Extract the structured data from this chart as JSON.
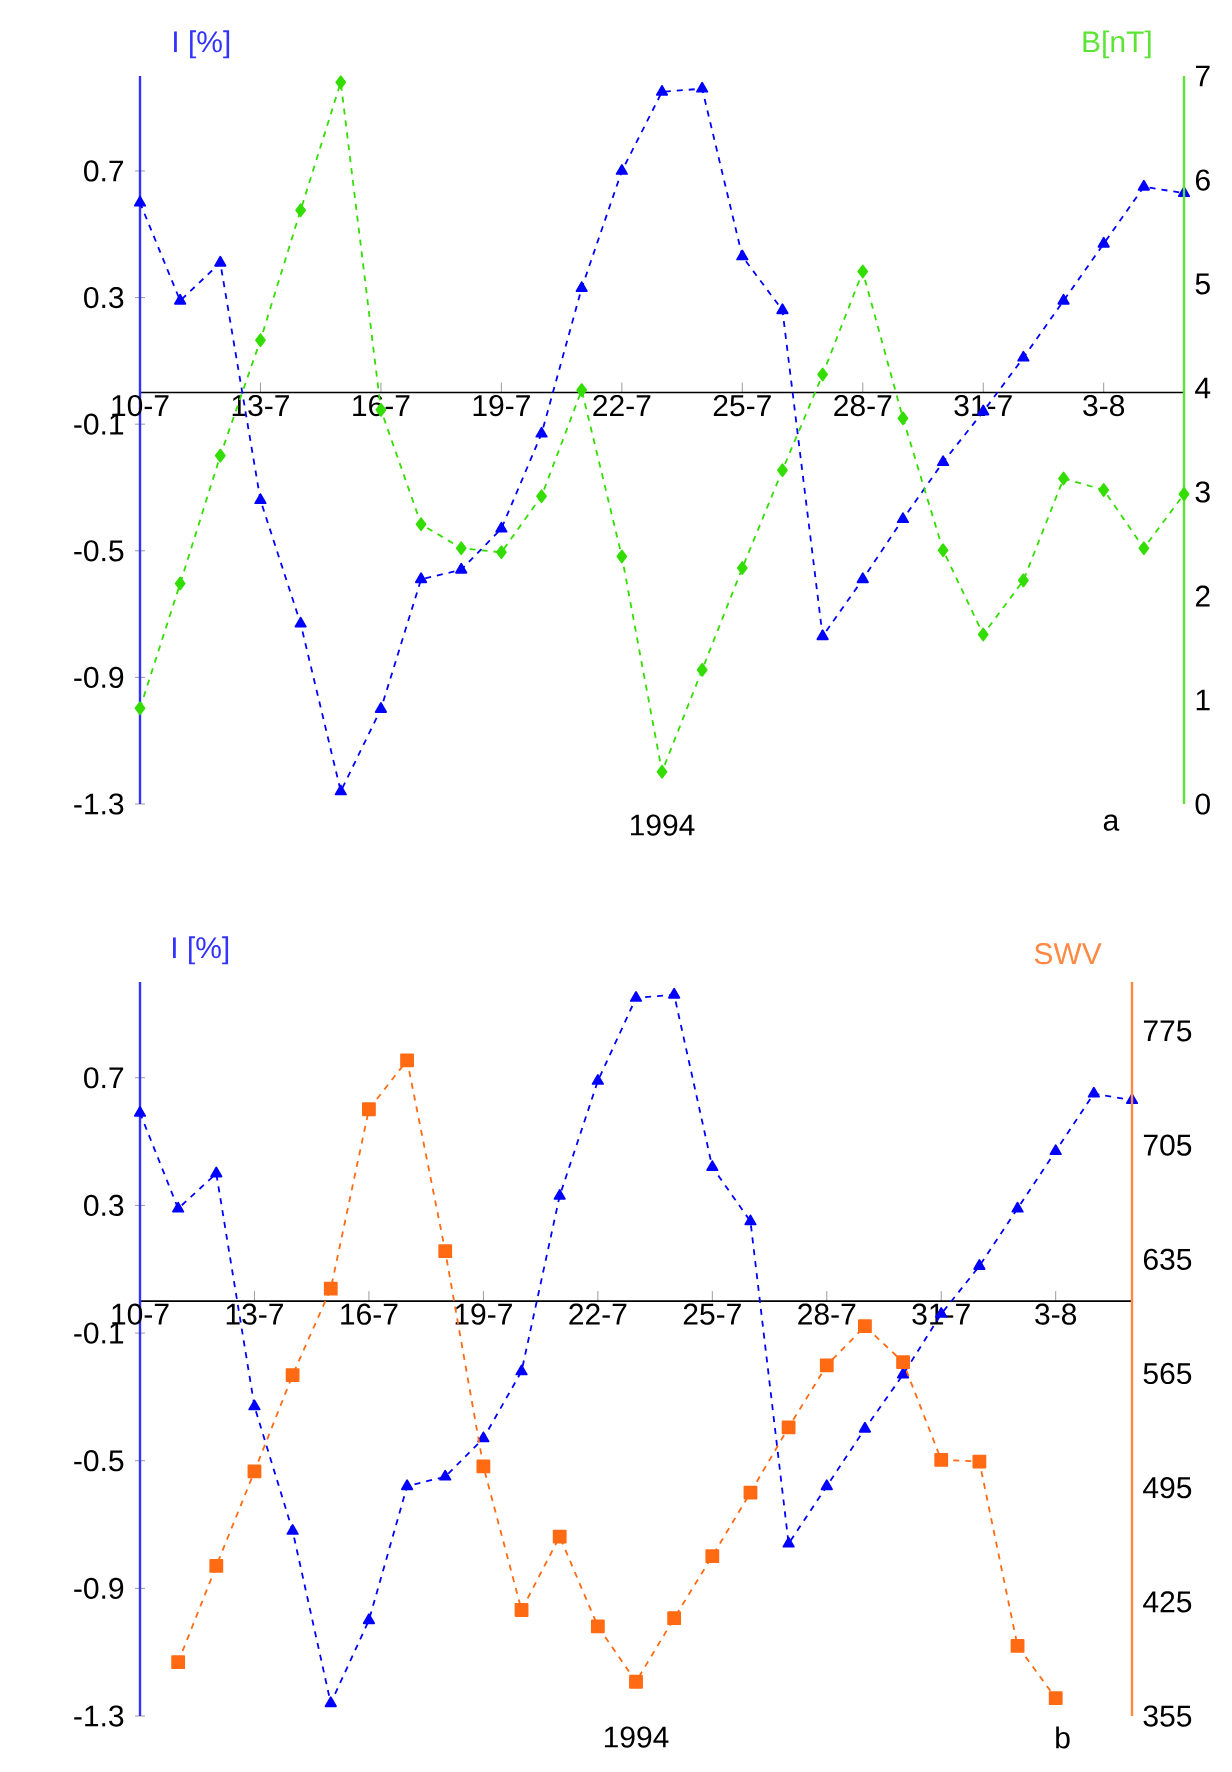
{
  "chart_data": [
    {
      "type": "line",
      "xlabel": "1994",
      "ylabel": "I [%]",
      "y2label": "B[nT]",
      "annotations": [
        "a"
      ],
      "categories": [
        "10-7",
        null,
        null,
        "13-7",
        null,
        null,
        "16-7",
        null,
        null,
        "19-7",
        null,
        null,
        "22-7",
        null,
        null,
        "25-7",
        null,
        null,
        "28-7",
        null,
        null,
        "31-7",
        null,
        null,
        "3-8",
        null,
        null
      ],
      "ylim": [
        -1.3,
        1.0
      ],
      "yticks": [
        -1.3,
        -0.9,
        -0.5,
        -0.1,
        0.3,
        0.7
      ],
      "y2lim": [
        0,
        7
      ],
      "y2ticks": [
        0,
        1,
        2,
        3,
        4,
        5,
        6,
        7
      ],
      "line_style": "dashed",
      "series": [
        {
          "color": "#0000ff",
          "marker": "triangle",
          "values": [
            0.6,
            0.29,
            0.41,
            -0.34,
            -0.73,
            -1.26,
            -1.0,
            -0.59,
            -0.56,
            -0.43,
            -0.13,
            0.33,
            0.7,
            0.95,
            0.96,
            0.43,
            0.26,
            -0.77,
            -0.59,
            -0.4,
            -0.22,
            -0.06,
            0.11,
            0.29,
            0.47,
            0.65,
            0.63
          ]
        },
        {
          "color": "#33dd00",
          "marker": "diamond",
          "axis": "y2",
          "values": [
            0.92,
            2.12,
            3.35,
            4.46,
            5.71,
            6.94,
            3.79,
            2.69,
            2.46,
            2.42,
            2.96,
            3.98,
            2.38,
            0.31,
            1.29,
            2.27,
            3.21,
            4.13,
            5.12,
            3.71,
            2.44,
            1.63,
            2.15,
            3.13,
            3.02,
            2.46,
            2.98
          ]
        }
      ]
    },
    {
      "type": "line",
      "xlabel": "1994",
      "ylabel": "I [%]",
      "y2label": "SWV",
      "annotations": [
        "b"
      ],
      "categories": [
        "10-7",
        null,
        null,
        "13-7",
        null,
        null,
        "16-7",
        null,
        null,
        "19-7",
        null,
        null,
        "22-7",
        null,
        null,
        "25-7",
        null,
        null,
        "28-7",
        null,
        null,
        "31-7",
        null,
        null,
        "3-8",
        null,
        null
      ],
      "ylim": [
        -1.3,
        1.0
      ],
      "yticks": [
        -1.3,
        -0.9,
        -0.5,
        -0.1,
        0.3,
        0.7
      ],
      "y2lim": [
        355,
        805
      ],
      "y2ticks": [
        355,
        425,
        495,
        565,
        635,
        705,
        775
      ],
      "line_style": "dashed",
      "series": [
        {
          "color": "#0000ff",
          "marker": "triangle",
          "values": [
            0.59,
            0.29,
            0.4,
            -0.33,
            -0.72,
            -1.26,
            -1.0,
            -0.58,
            -0.55,
            -0.43,
            -0.22,
            0.33,
            0.69,
            0.95,
            0.96,
            0.42,
            0.25,
            -0.76,
            -0.58,
            -0.4,
            -0.23,
            -0.04,
            0.11,
            0.29,
            0.47,
            0.65,
            0.63
          ]
        },
        {
          "color": "#ff6a13",
          "marker": "square",
          "axis": "y2",
          "values": [
            null,
            388,
            447,
            505,
            564,
            617,
            727,
            757,
            640,
            508,
            420,
            465,
            410,
            376,
            415,
            453,
            492,
            532,
            570,
            594,
            572,
            512,
            511,
            398,
            366,
            null,
            null
          ]
        }
      ]
    }
  ]
}
